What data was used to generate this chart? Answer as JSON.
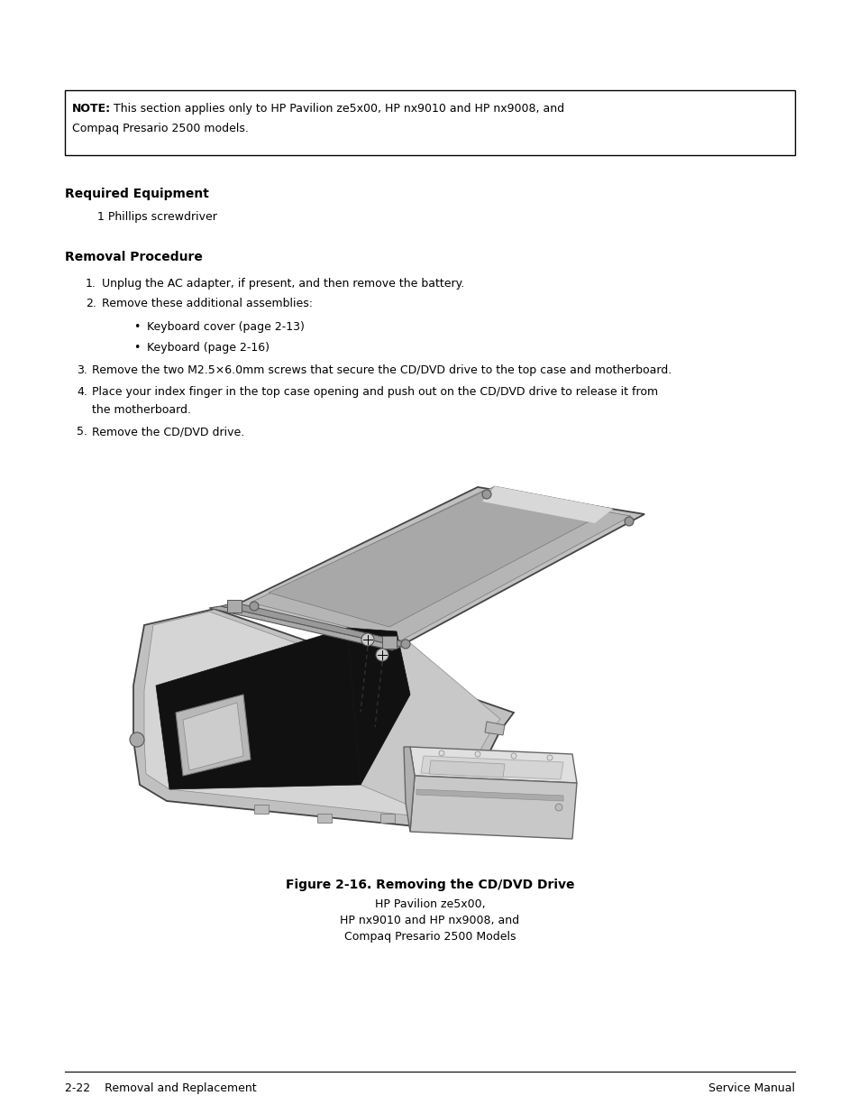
{
  "bg_color": "#ffffff",
  "text_color": "#000000",
  "note_bold": "NOTE:",
  "note_rest": " This section applies only to HP Pavilion ze5x00, HP nx9010 and HP nx9008, and",
  "note_line2": "Compaq Presario 2500 models.",
  "required_equipment_header": "Required Equipment",
  "required_equipment_item": "1 Phillips screwdriver",
  "removal_procedure_header": "Removal Procedure",
  "step1": "Unplug the AC adapter, if present, and then remove the battery.",
  "step2": "Remove these additional assemblies:",
  "bullet1": "Keyboard cover (page 2-13)",
  "bullet2": "Keyboard (page 2-16)",
  "step3": "Remove the two M2.5×6.0mm screws that secure the CD/DVD drive to the top case and motherboard.",
  "step4a": "Place your index finger in the top case opening and push out on the CD/DVD drive to release it from",
  "step4b": "the motherboard.",
  "step5": "Remove the CD/DVD drive.",
  "figure_caption": "Figure 2-16. Removing the CD/DVD Drive",
  "figure_sub1": "HP Pavilion ze5x00,",
  "figure_sub2": "HP nx9010 and HP nx9008, and",
  "figure_sub3": "Compaq Presario 2500 Models",
  "footer_left": "2-22    Removal and Replacement",
  "footer_right": "Service Manual"
}
